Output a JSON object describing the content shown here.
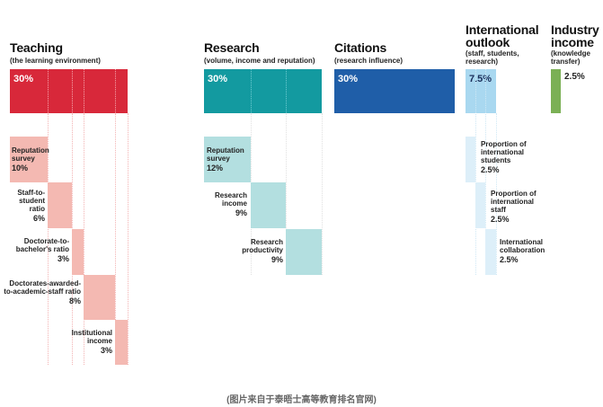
{
  "colors": {
    "teaching": "#d8283a",
    "teaching_light": "#f4b9b2",
    "research": "#139aa0",
    "research_light": "#b3dfe0",
    "citations": "#1f5ea8",
    "intl": "#a9d8f0",
    "intl_light": "#ddeff9",
    "industry": "#7bb055"
  },
  "teaching": {
    "title": "Teaching",
    "subtitle": "(the learning environment)",
    "total": "30%",
    "items": [
      {
        "label": "Reputation survey",
        "pct": "10%"
      },
      {
        "label": "Staff-to-student ratio",
        "pct": "6%"
      },
      {
        "label": "Doctorate-to-bachelor's ratio",
        "pct": "3%"
      },
      {
        "label": "Doctorates-awarded-to-academic-staff ratio",
        "pct": "8%"
      },
      {
        "label": "Institutional income",
        "pct": "3%"
      }
    ]
  },
  "research": {
    "title": "Research",
    "subtitle": "(volume, income and reputation)",
    "total": "30%",
    "items": [
      {
        "label": "Reputation survey",
        "pct": "12%"
      },
      {
        "label": "Research income",
        "pct": "9%"
      },
      {
        "label": "Research productivity",
        "pct": "9%"
      }
    ]
  },
  "citations": {
    "title": "Citations",
    "subtitle": "(research influence)",
    "total": "30%"
  },
  "international": {
    "title": "International outlook",
    "subtitle": "(staff, students, research)",
    "total": "7.5%",
    "items": [
      {
        "label": "Proportion of international students",
        "pct": "2.5%"
      },
      {
        "label": "Proportion of international staff",
        "pct": "2.5%"
      },
      {
        "label": "International collaboration",
        "pct": "2.5%"
      }
    ]
  },
  "industry": {
    "title": "Industry income",
    "subtitle": "(knowledge transfer)",
    "total": "2.5%"
  },
  "caption": "(图片来自于泰晤士高等教育排名官网)"
}
